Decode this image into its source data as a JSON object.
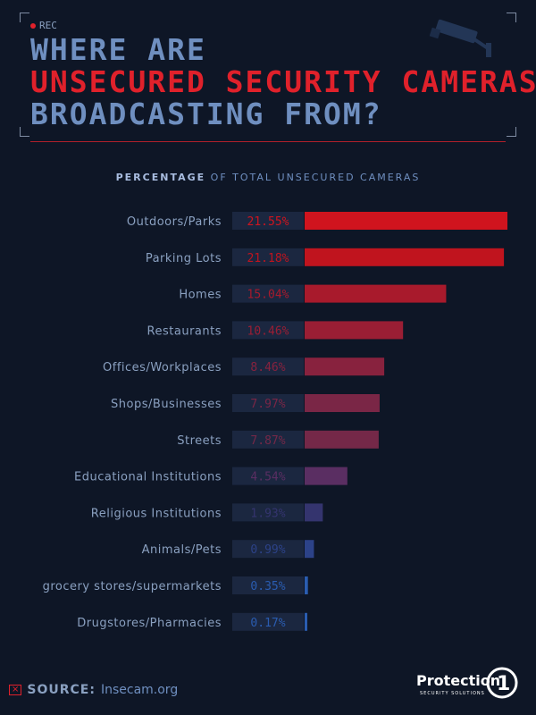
{
  "header": {
    "rec_label": "REC",
    "title_line1": "WHERE ARE",
    "title_line2": "UNSECURED SECURITY CAMERAS",
    "title_line3": "BROADCASTING FROM?"
  },
  "subtitle": {
    "bold": "PERCENTAGE",
    "rest": "OF TOTAL UNSECURED CAMERAS"
  },
  "chart_data": {
    "type": "bar",
    "orientation": "horizontal",
    "categories": [
      "Outdoors/Parks",
      "Parking Lots",
      "Homes",
      "Restaurants",
      "Offices/Workplaces",
      "Shops/Businesses",
      "Streets",
      "Educational Institutions",
      "Religious Institutions",
      "Animals/Pets",
      "grocery stores/supermarkets",
      "Drugstores/Pharmacies"
    ],
    "values": [
      21.55,
      21.18,
      15.04,
      10.46,
      8.46,
      7.97,
      7.87,
      4.54,
      1.93,
      0.99,
      0.35,
      0.17
    ],
    "value_labels": [
      "21.55%",
      "21.18%",
      "15.04%",
      "10.46%",
      "8.46%",
      "7.97%",
      "7.87%",
      "4.54%",
      "1.93%",
      "0.99%",
      "0.35%",
      "0.17%"
    ],
    "bar_colors": [
      "#d0141e",
      "#c0141e",
      "#a81a2c",
      "#9a1e34",
      "#88223e",
      "#7a2646",
      "#742848",
      "#5a2e62",
      "#34346e",
      "#2c4288",
      "#2a5cb0",
      "#2a5cb0"
    ],
    "xlim": [
      0,
      21.55
    ]
  },
  "footer": {
    "source_label": "SOURCE:",
    "source_value": "Insecam.org",
    "logo_text": "Protection",
    "logo_number": "1",
    "logo_sub": "SECURITY SOLUTIONS"
  },
  "colors": {
    "background": "#0e1626",
    "accent_red": "#e0212b",
    "title_blue": "#6f8fc0"
  }
}
